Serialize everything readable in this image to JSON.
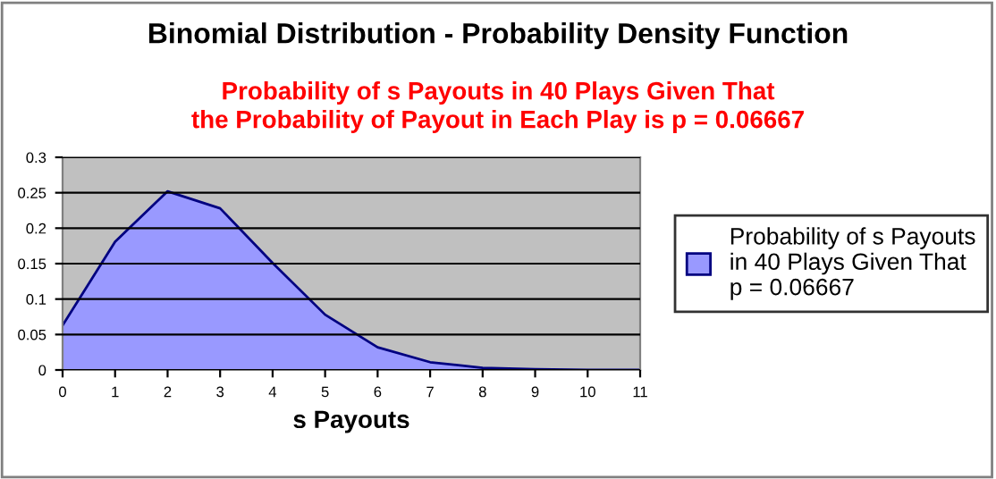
{
  "chart_data": {
    "type": "area",
    "title": "Binomial Distribution - Probability Density Function",
    "subtitle": "Probability of s Payouts in 40 Plays Given That\nthe Probability of Payout in Each Play is p = 0.06667",
    "xlabel": "s Payouts",
    "x": [
      0,
      1,
      2,
      3,
      4,
      5,
      6,
      7,
      8,
      9,
      10,
      11
    ],
    "series": [
      {
        "name": "Probability of s Payouts\nin 40 Plays Given That\np = 0.06667",
        "color": "#9999ff",
        "values": [
          0.063,
          0.181,
          0.252,
          0.228,
          0.151,
          0.078,
          0.032,
          0.011,
          0.003,
          0.001,
          0.0,
          0.0
        ]
      }
    ],
    "xlim": [
      0,
      11
    ],
    "xticks": [
      0,
      1,
      2,
      3,
      4,
      5,
      6,
      7,
      8,
      9,
      10,
      11
    ],
    "ylim": [
      0,
      0.3
    ],
    "yticks": [
      0,
      0.05,
      0.1,
      0.15,
      0.2,
      0.25,
      0.3
    ],
    "grid": "y",
    "legend": "right"
  }
}
